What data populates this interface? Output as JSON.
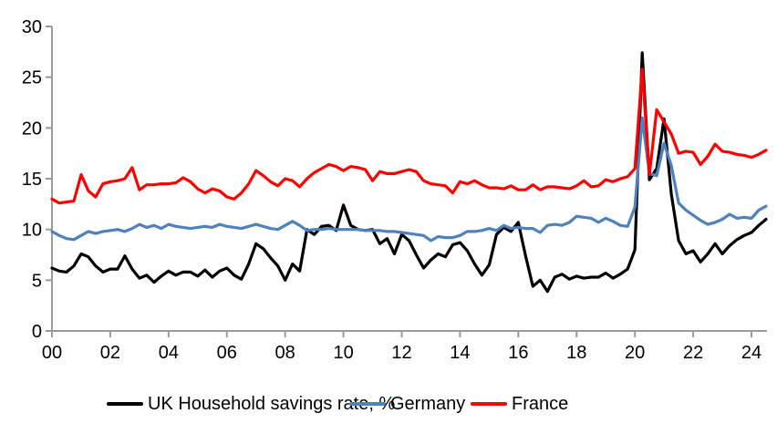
{
  "chart_data": {
    "type": "line",
    "title": "",
    "xlabel": "",
    "ylabel": "",
    "x_unit": "quarterly, 2000Q1 to 2024Q3",
    "x_tick_labels": [
      "00",
      "02",
      "04",
      "06",
      "08",
      "10",
      "12",
      "14",
      "16",
      "18",
      "20",
      "22",
      "24"
    ],
    "y_ticks": [
      0,
      5,
      10,
      15,
      20,
      25,
      30
    ],
    "ylim": [
      0,
      30
    ],
    "grid": false,
    "legend_position": "bottom",
    "axis_color": "#9b9b9b",
    "series": [
      {
        "name": "UK Household savings rate, %",
        "color": "#000000",
        "values": [
          6.2,
          5.9,
          5.8,
          6.4,
          7.6,
          7.3,
          6.4,
          5.8,
          6.1,
          6.1,
          7.4,
          6.1,
          5.2,
          5.5,
          4.8,
          5.4,
          5.9,
          5.5,
          5.8,
          5.8,
          5.4,
          6.0,
          5.3,
          5.9,
          6.2,
          5.5,
          5.1,
          6.6,
          8.6,
          8.1,
          7.2,
          6.4,
          5.0,
          6.6,
          5.9,
          10.0,
          9.5,
          10.3,
          10.4,
          9.9,
          12.4,
          10.4,
          10.0,
          9.9,
          10.0,
          8.6,
          9.1,
          7.6,
          9.5,
          8.9,
          7.5,
          6.2,
          7.0,
          7.6,
          7.3,
          8.5,
          8.7,
          7.9,
          6.6,
          5.5,
          6.5,
          9.5,
          10.2,
          9.8,
          10.7,
          7.4,
          4.4,
          5.0,
          3.9,
          5.3,
          5.6,
          5.1,
          5.4,
          5.2,
          5.3,
          5.3,
          5.7,
          5.2,
          5.6,
          6.1,
          8.0,
          27.4,
          14.9,
          16.0,
          20.9,
          13.5,
          8.9,
          7.6,
          7.9,
          6.8,
          7.6,
          8.6,
          7.6,
          8.4,
          9.0,
          9.4,
          9.7,
          10.4,
          11.0
        ]
      },
      {
        "name": "Germany",
        "color": "#4F81BD",
        "values": [
          9.8,
          9.4,
          9.1,
          9.0,
          9.4,
          9.8,
          9.6,
          9.8,
          9.9,
          10.0,
          9.8,
          10.1,
          10.5,
          10.2,
          10.4,
          10.1,
          10.5,
          10.3,
          10.2,
          10.1,
          10.2,
          10.3,
          10.2,
          10.5,
          10.3,
          10.2,
          10.1,
          10.3,
          10.5,
          10.3,
          10.1,
          10.0,
          10.4,
          10.8,
          10.4,
          9.9,
          10.0,
          10.0,
          10.1,
          10.0,
          10.0,
          10.0,
          10.0,
          9.9,
          9.9,
          9.9,
          9.8,
          9.8,
          9.7,
          9.6,
          9.5,
          9.4,
          8.9,
          9.3,
          9.2,
          9.2,
          9.4,
          9.8,
          9.8,
          9.9,
          10.1,
          9.9,
          10.4,
          10.1,
          10.2,
          10.1,
          10.1,
          9.7,
          10.4,
          10.5,
          10.4,
          10.7,
          11.3,
          11.2,
          11.1,
          10.7,
          11.1,
          10.8,
          10.4,
          10.3,
          12.2,
          21.0,
          15.5,
          15.3,
          18.5,
          16.3,
          12.6,
          11.9,
          11.4,
          10.9,
          10.5,
          10.7,
          11.0,
          11.5,
          11.1,
          11.2,
          11.1,
          11.9,
          12.3
        ]
      },
      {
        "name": "France",
        "color": "#FF0000",
        "values": [
          13.0,
          12.6,
          12.7,
          12.8,
          15.4,
          13.8,
          13.2,
          14.5,
          14.7,
          14.8,
          15.0,
          16.1,
          13.9,
          14.4,
          14.4,
          14.5,
          14.5,
          14.6,
          15.1,
          14.7,
          14.0,
          13.6,
          14.0,
          13.8,
          13.2,
          13.0,
          13.6,
          14.5,
          15.8,
          15.3,
          14.7,
          14.3,
          15.0,
          14.8,
          14.2,
          15.0,
          15.6,
          16.0,
          16.4,
          16.2,
          15.8,
          16.2,
          16.1,
          15.9,
          14.8,
          15.7,
          15.5,
          15.5,
          15.7,
          15.9,
          15.7,
          14.8,
          14.5,
          14.4,
          14.3,
          13.6,
          14.7,
          14.5,
          14.8,
          14.4,
          14.1,
          14.1,
          14.0,
          14.3,
          13.9,
          13.9,
          14.4,
          13.9,
          14.2,
          14.2,
          14.1,
          14.0,
          14.3,
          14.8,
          14.2,
          14.3,
          14.9,
          14.7,
          15.0,
          15.2,
          16.0,
          25.8,
          15.4,
          21.8,
          20.6,
          19.4,
          17.5,
          17.7,
          17.6,
          16.4,
          17.2,
          18.4,
          17.7,
          17.6,
          17.4,
          17.3,
          17.1,
          17.4,
          17.8
        ]
      }
    ]
  }
}
